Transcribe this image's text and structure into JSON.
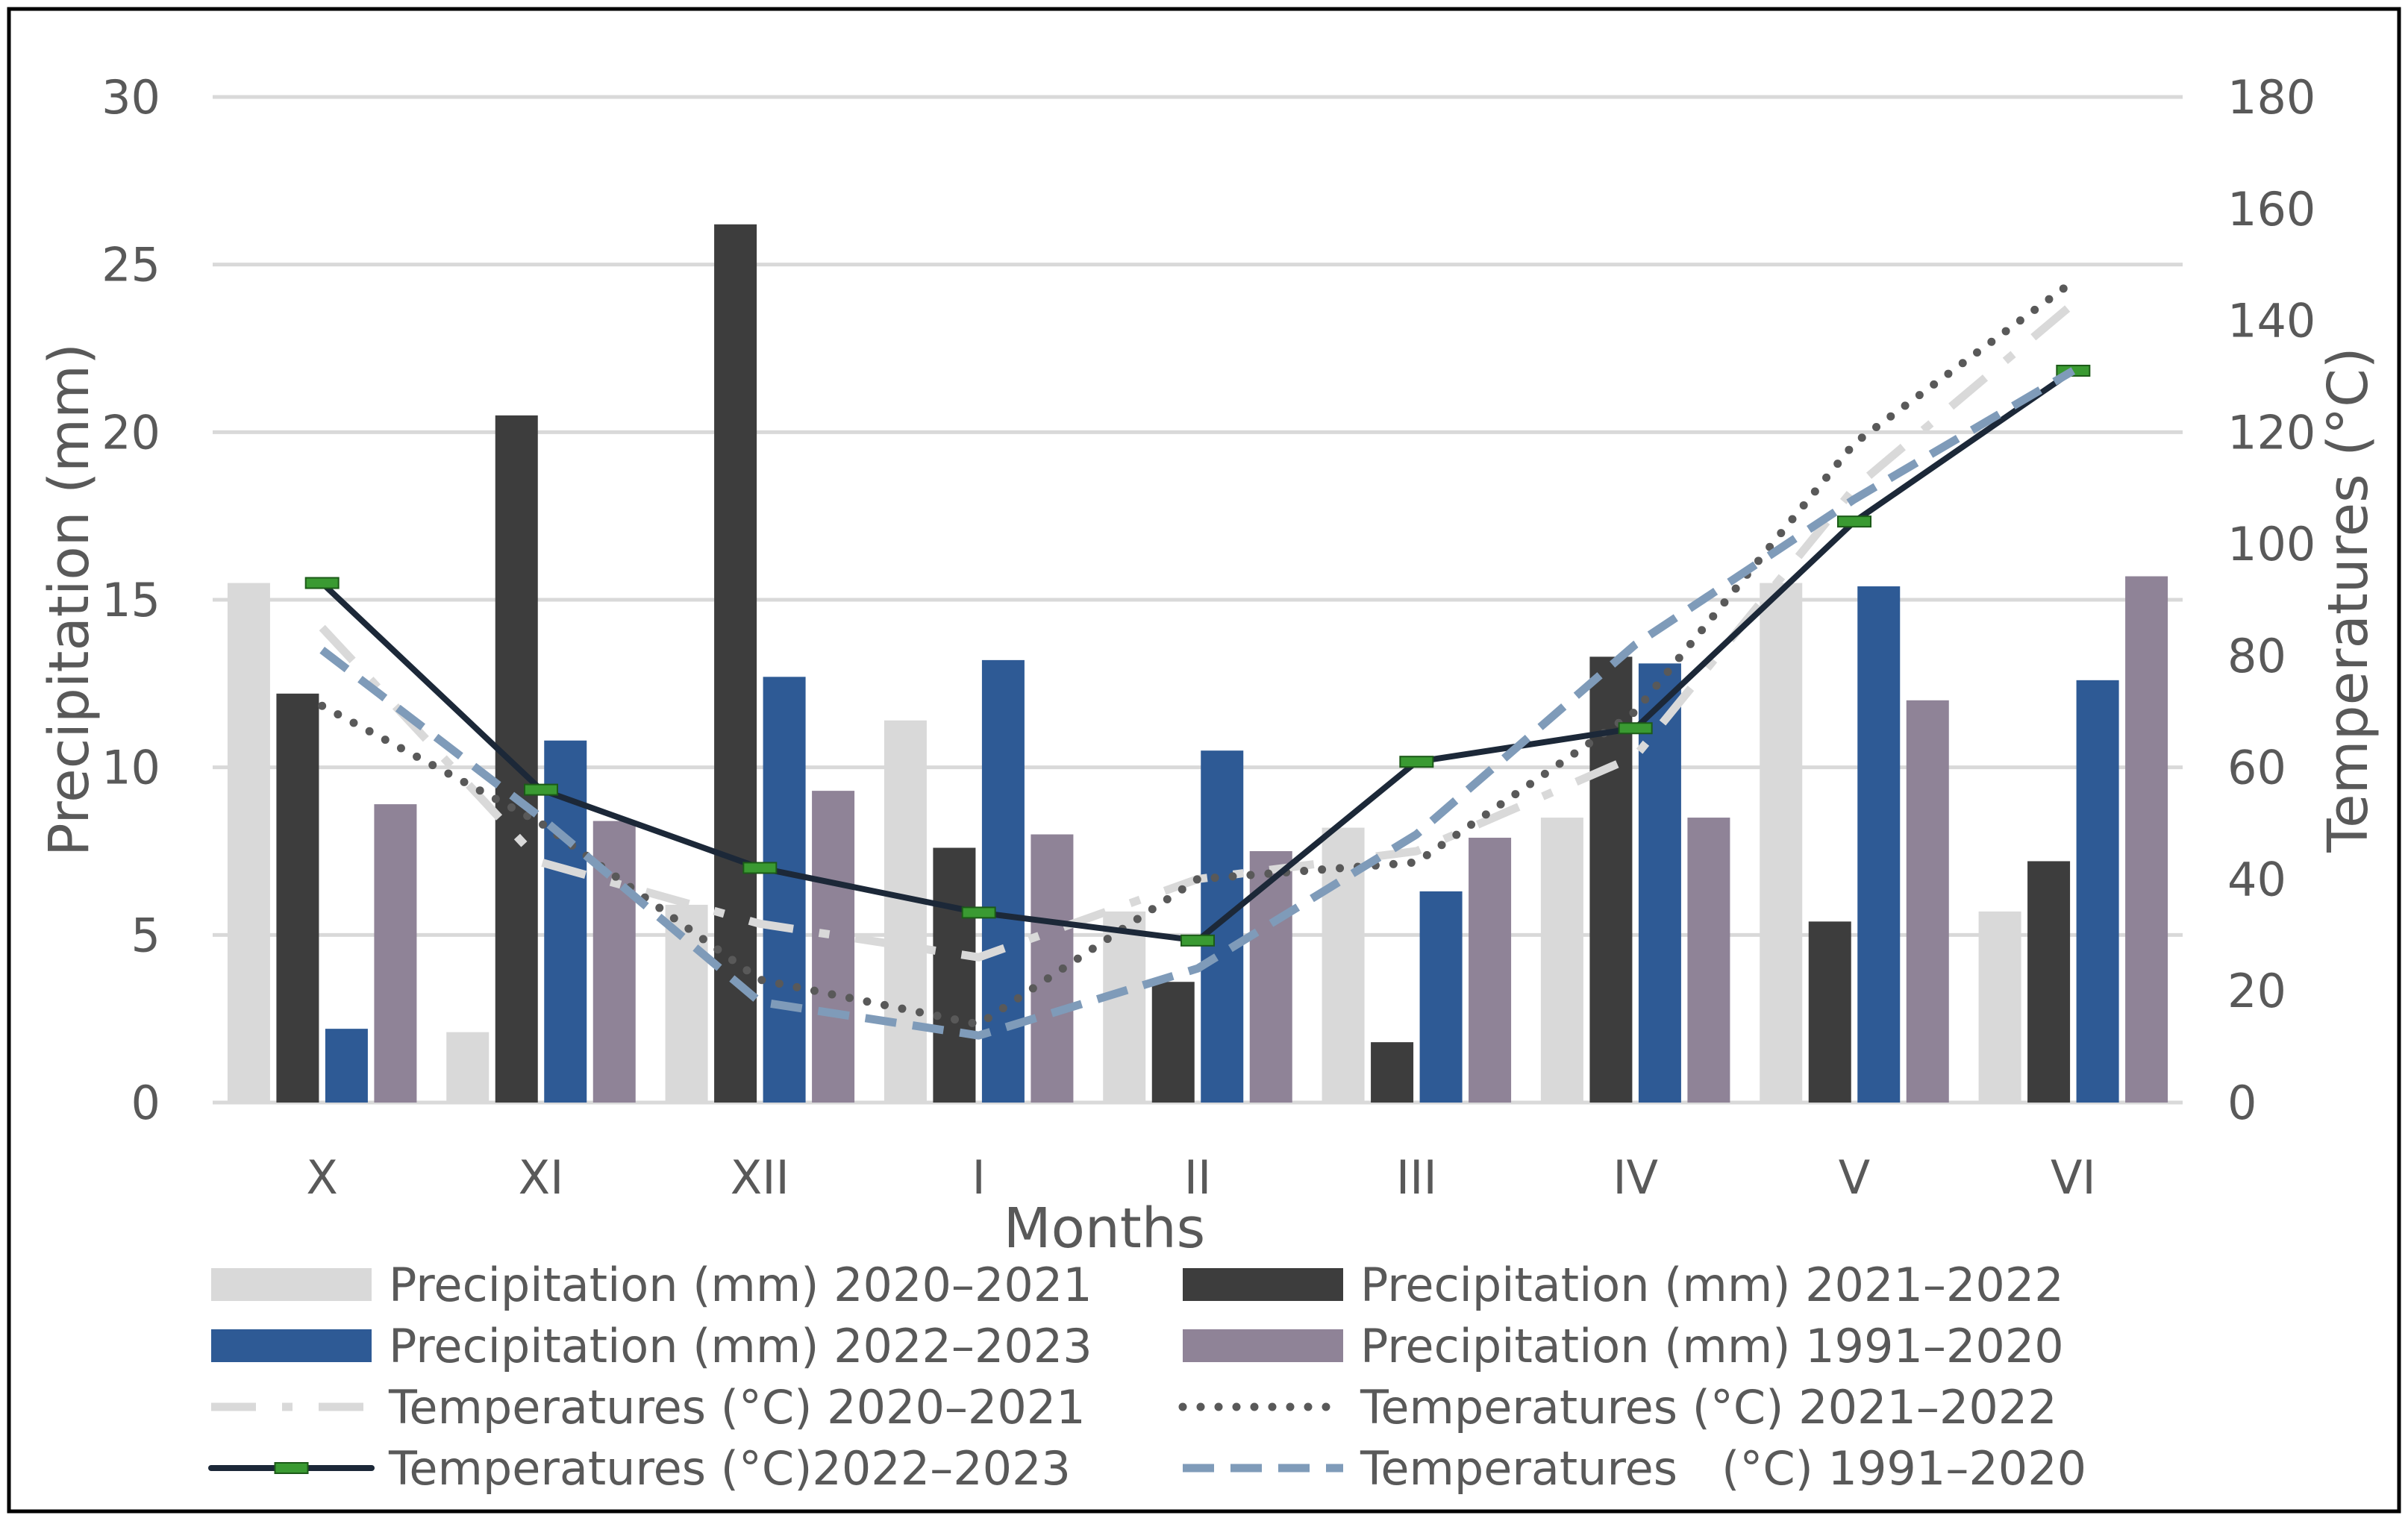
{
  "chart_data": {
    "type": "bar",
    "title": "",
    "xlabel": "Months",
    "ylabel": "Precipitation (mm)",
    "y2label": "Temperatures (°C)",
    "categories": [
      "X",
      "XI",
      "XII",
      "I",
      "II",
      "III",
      "IV",
      "V",
      "VI"
    ],
    "ylim": [
      0,
      30
    ],
    "y2lim": [
      0,
      180
    ],
    "yticks": [
      "0",
      "5",
      "10",
      "15",
      "20",
      "25",
      "30"
    ],
    "y2ticks": [
      "0",
      "20",
      "40",
      "60",
      "80",
      "100",
      "120",
      "140",
      "160",
      "180"
    ],
    "grid": true,
    "legend_position": "bottom",
    "bar_series": [
      {
        "name": "Precipitation (mm) 2020–2021",
        "color": "#d9d9d9",
        "values": [
          15.5,
          2.1,
          5.9,
          11.4,
          5.7,
          8.2,
          8.5,
          15.5,
          5.7
        ]
      },
      {
        "name": "Precipitation (mm) 2021–2022",
        "color": "#3d3d3d",
        "values": [
          12.2,
          20.5,
          26.2,
          7.6,
          3.6,
          1.8,
          13.3,
          5.4,
          7.2
        ]
      },
      {
        "name": "Precipitation (mm) 2022–2023",
        "color": "#2e5a95",
        "values": [
          2.2,
          10.8,
          12.7,
          13.2,
          10.5,
          6.3,
          13.1,
          15.4,
          12.6
        ]
      },
      {
        "name": "Precipitation (mm) 1991–2020",
        "color": "#8f8397",
        "values": [
          8.9,
          8.4,
          9.3,
          8.0,
          7.5,
          7.9,
          8.5,
          12.0,
          15.7
        ]
      }
    ],
    "line_series": [
      {
        "name": "Temperatures (°C) 2020–2021",
        "color": "#d9d9d9",
        "style": "dash-dot",
        "values": [
          85,
          43,
          32,
          26,
          40,
          45,
          62,
          110,
          143
        ]
      },
      {
        "name": "Temperatures (°C) 2021–2022",
        "color": "#595959",
        "style": "dotted",
        "values": [
          71,
          50,
          22,
          14,
          40,
          43,
          70,
          118,
          147
        ]
      },
      {
        "name": "Temperatures (°C)2022–2023",
        "color": "#1c2838",
        "style": "solid-marker",
        "marker_color": "#3a9a32",
        "values": [
          93,
          56,
          42,
          34,
          29,
          61,
          67,
          104,
          131
        ]
      },
      {
        "name": "Temperatures   (°C) 1991–2020",
        "color": "#7f9bb9",
        "style": "dashed",
        "values": [
          81,
          51,
          18,
          12,
          24,
          48,
          82,
          108,
          131
        ]
      }
    ]
  }
}
